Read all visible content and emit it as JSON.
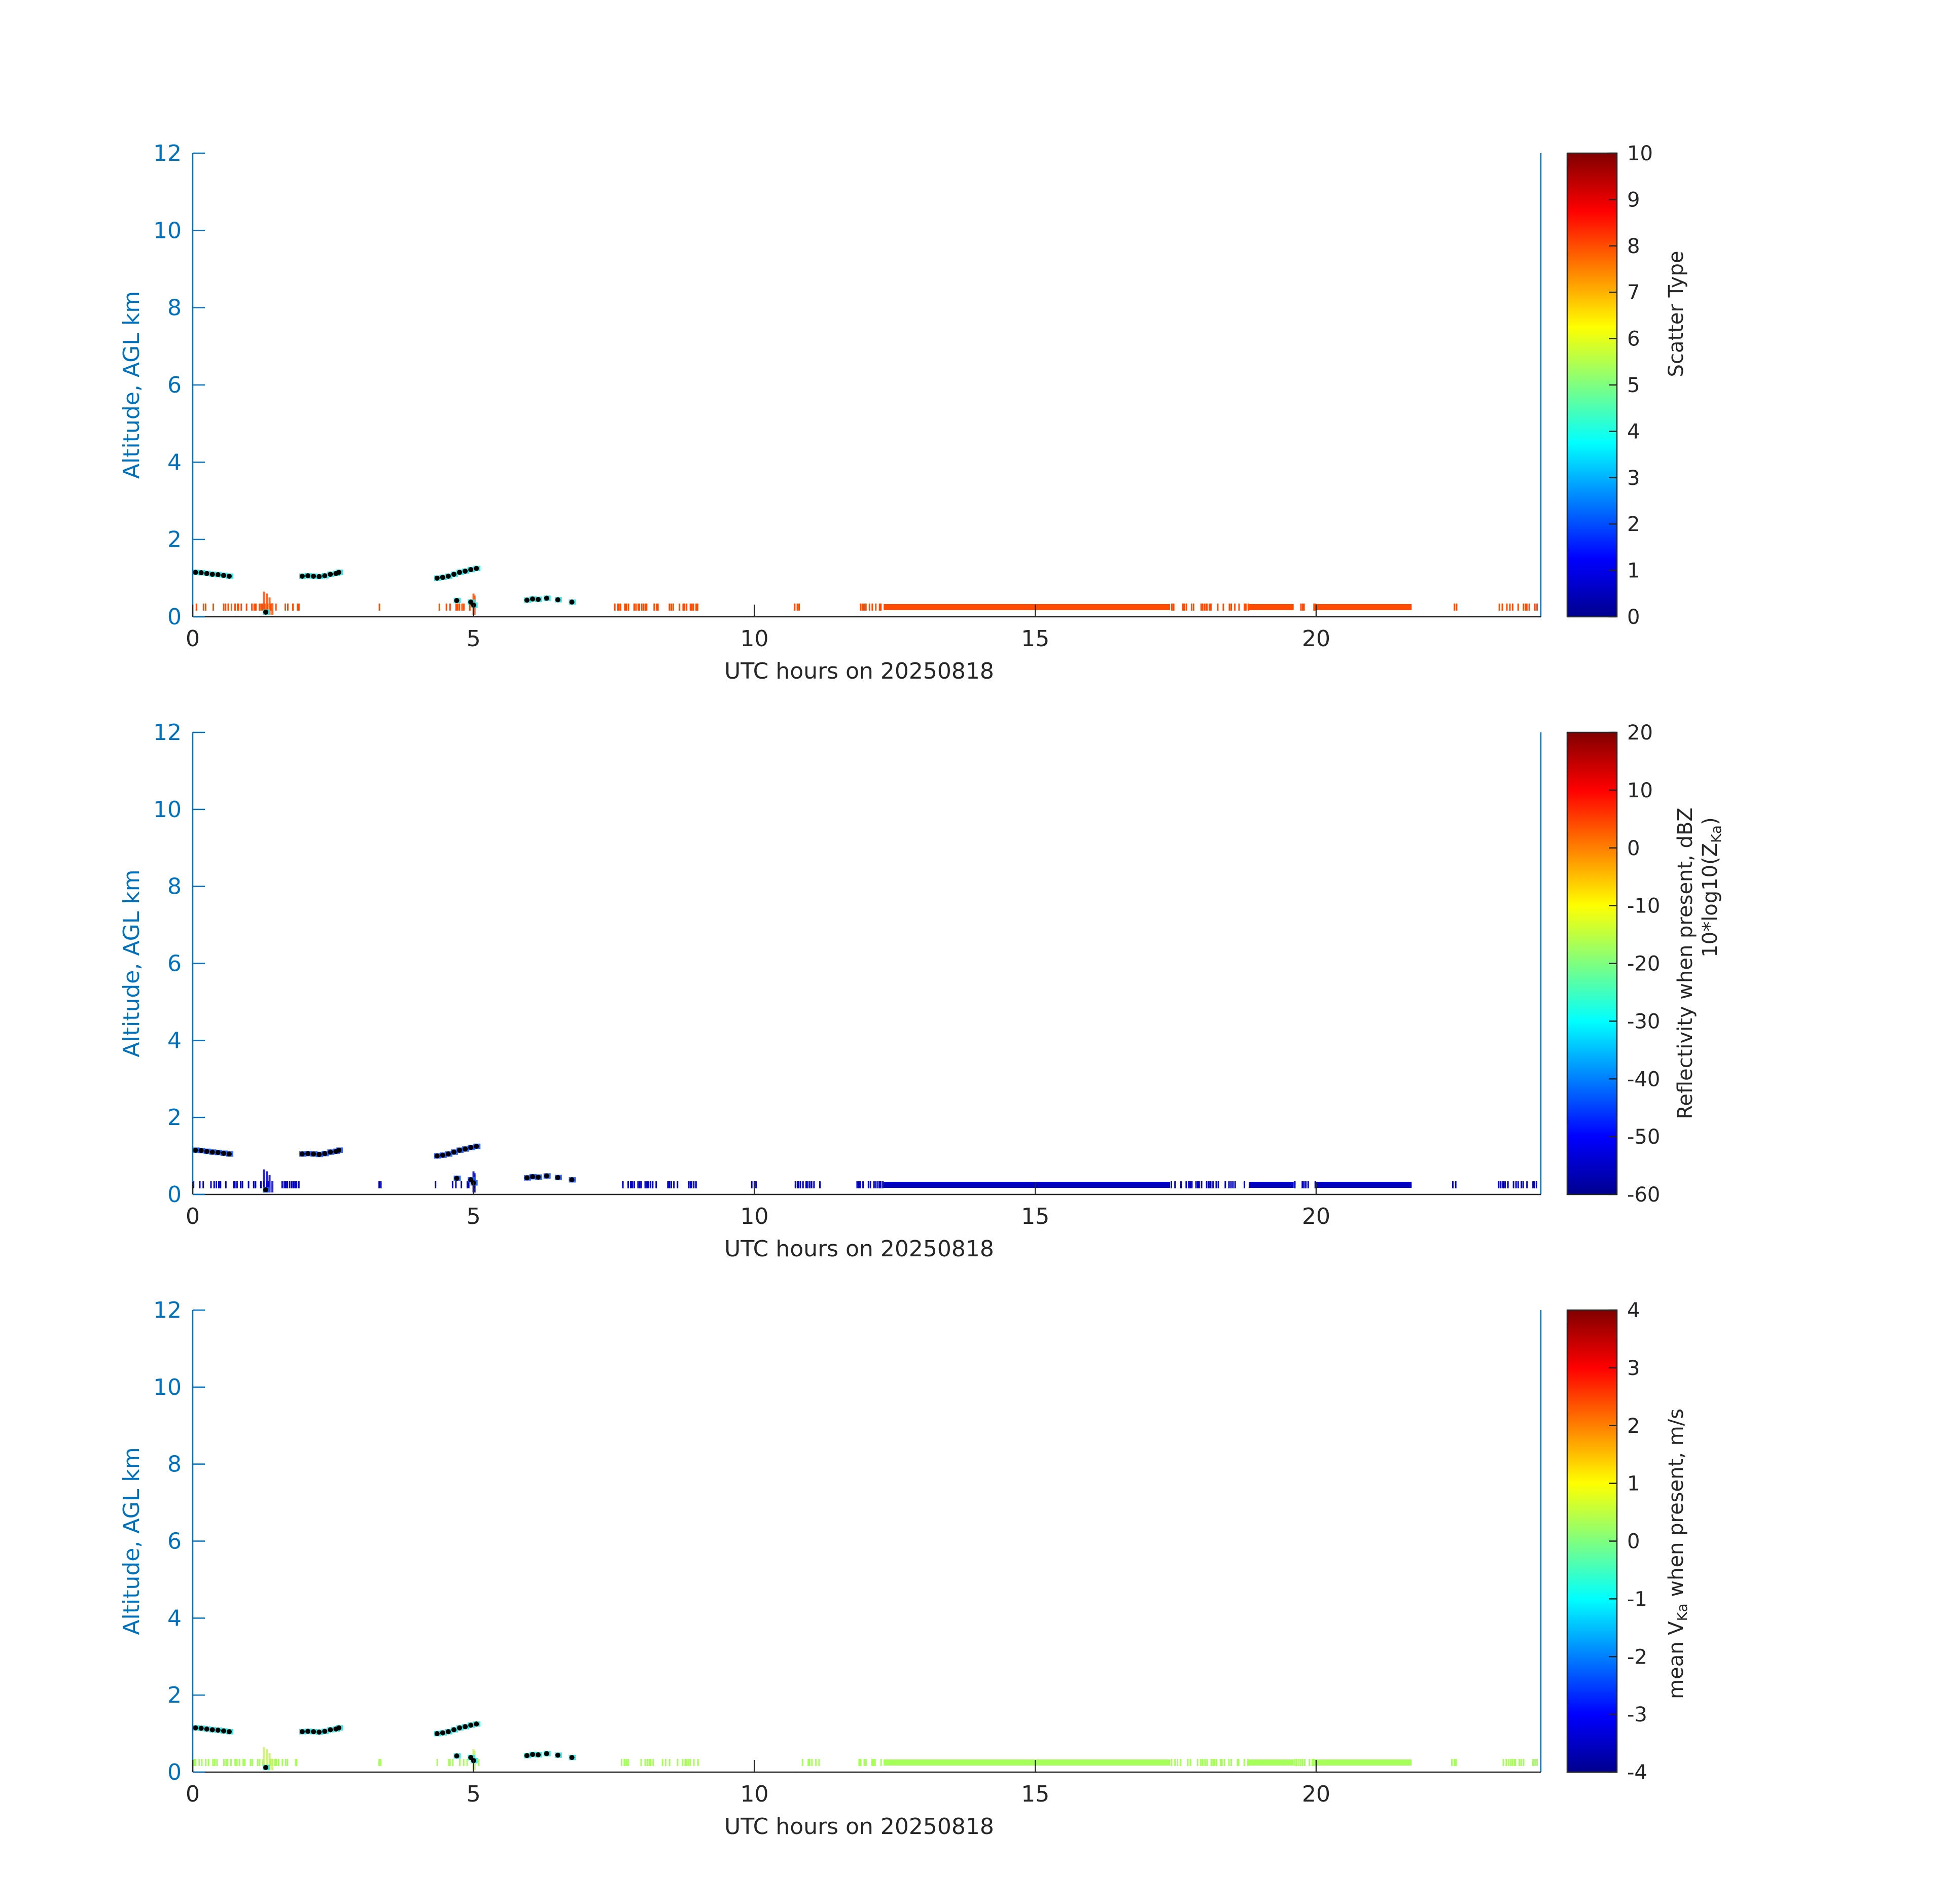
{
  "colors": {
    "axis_blue": "#0072BD",
    "axis_dark": "#262626",
    "scatter_fill": "#FF4A00",
    "refl_fill": "#0A1AD8",
    "vel_fill": "#7DF07A",
    "cloud_cyan": "#2FE6E0",
    "cloud_dot": "#000000"
  },
  "chart_data": [
    {
      "type": "heatmap",
      "title": "",
      "xlabel": "UTC hours on 20250818",
      "ylabel": "Altitude, AGL km",
      "xlim": [
        0,
        24
      ],
      "ylim": [
        0,
        12
      ],
      "xticks": [
        0,
        5,
        10,
        15,
        20
      ],
      "yticks": [
        0,
        2,
        4,
        6,
        8,
        10,
        12
      ],
      "grid": false,
      "colorbar": {
        "label": "Scatter Type",
        "label2": "",
        "range": [
          0,
          10
        ],
        "ticks": [
          0,
          1,
          2,
          3,
          4,
          5,
          6,
          7,
          8,
          9,
          10
        ],
        "colormap": "jet"
      },
      "near_surface_band": {
        "altitude_km": 0.25,
        "value": 8,
        "continuous_segments_utc_h": [
          [
            12.3,
            17.4
          ],
          [
            18.8,
            19.6
          ],
          [
            20.0,
            21.7
          ]
        ],
        "sparse_segments_utc_h": [
          [
            0.0,
            1.9
          ],
          [
            3.3,
            3.35
          ],
          [
            4.3,
            5.1
          ],
          [
            7.5,
            9.0
          ],
          [
            10.7,
            10.8
          ],
          [
            11.8,
            12.3
          ],
          [
            17.4,
            18.8
          ],
          [
            19.6,
            20.0
          ],
          [
            22.4,
            22.5
          ],
          [
            23.2,
            24.0
          ]
        ]
      },
      "cloud_base_points": [
        {
          "t": 0.05,
          "z": 1.15
        },
        {
          "t": 0.15,
          "z": 1.14
        },
        {
          "t": 0.25,
          "z": 1.12
        },
        {
          "t": 0.35,
          "z": 1.1
        },
        {
          "t": 0.45,
          "z": 1.09
        },
        {
          "t": 0.55,
          "z": 1.07
        },
        {
          "t": 0.65,
          "z": 1.05
        },
        {
          "t": 1.3,
          "z": 0.12
        },
        {
          "t": 1.95,
          "z": 1.05
        },
        {
          "t": 2.05,
          "z": 1.06
        },
        {
          "t": 2.15,
          "z": 1.05
        },
        {
          "t": 2.25,
          "z": 1.04
        },
        {
          "t": 2.35,
          "z": 1.06
        },
        {
          "t": 2.45,
          "z": 1.1
        },
        {
          "t": 2.55,
          "z": 1.12
        },
        {
          "t": 2.6,
          "z": 1.15
        },
        {
          "t": 4.35,
          "z": 1.0
        },
        {
          "t": 4.45,
          "z": 1.02
        },
        {
          "t": 4.55,
          "z": 1.05
        },
        {
          "t": 4.65,
          "z": 1.1
        },
        {
          "t": 4.75,
          "z": 1.15
        },
        {
          "t": 4.85,
          "z": 1.18
        },
        {
          "t": 4.95,
          "z": 1.22
        },
        {
          "t": 5.05,
          "z": 1.25
        },
        {
          "t": 4.7,
          "z": 0.42
        },
        {
          "t": 4.95,
          "z": 0.38
        },
        {
          "t": 5.0,
          "z": 0.3
        },
        {
          "t": 5.95,
          "z": 0.43
        },
        {
          "t": 6.05,
          "z": 0.46
        },
        {
          "t": 6.15,
          "z": 0.45
        },
        {
          "t": 6.3,
          "z": 0.48
        },
        {
          "t": 6.5,
          "z": 0.44
        },
        {
          "t": 6.75,
          "z": 0.38
        }
      ]
    },
    {
      "type": "heatmap",
      "title": "",
      "xlabel": "UTC hours on 20250818",
      "ylabel": "Altitude, AGL km",
      "xlim": [
        0,
        24
      ],
      "ylim": [
        0,
        12
      ],
      "xticks": [
        0,
        5,
        10,
        15,
        20
      ],
      "yticks": [
        0,
        2,
        4,
        6,
        8,
        10,
        12
      ],
      "grid": false,
      "colorbar": {
        "label": "Reflectivity when present, dBZ",
        "label2": "10*log10(Z",
        "label2_sub": "Ka",
        "label2_end": ")",
        "range": [
          -60,
          20
        ],
        "ticks": [
          -60,
          -50,
          -40,
          -30,
          -20,
          -10,
          0,
          10,
          20
        ],
        "colormap": "jet"
      },
      "near_surface_band": {
        "altitude_km": 0.25,
        "value": -55,
        "continuous_segments_utc_h": [
          [
            12.3,
            17.4
          ],
          [
            18.8,
            19.6
          ],
          [
            20.0,
            21.7
          ]
        ],
        "sparse_segments_utc_h": [
          [
            0.0,
            1.9
          ],
          [
            3.3,
            3.35
          ],
          [
            4.3,
            5.1
          ],
          [
            7.5,
            9.0
          ],
          [
            9.9,
            10.1
          ],
          [
            10.7,
            11.2
          ],
          [
            11.8,
            12.3
          ],
          [
            17.4,
            18.8
          ],
          [
            19.6,
            20.0
          ],
          [
            22.4,
            22.5
          ],
          [
            23.2,
            24.0
          ]
        ]
      }
    },
    {
      "type": "heatmap",
      "title": "",
      "xlabel": "UTC hours on 20250818",
      "ylabel": "Altitude, AGL km",
      "xlim": [
        0,
        24
      ],
      "ylim": [
        0,
        12
      ],
      "xticks": [
        0,
        5,
        10,
        15,
        20
      ],
      "yticks": [
        0,
        2,
        4,
        6,
        8,
        10,
        12
      ],
      "grid": false,
      "colorbar": {
        "label": "mean V",
        "label_sub": "Ka",
        "label_end": " when present, m/s",
        "range": [
          -4,
          4
        ],
        "ticks": [
          -4,
          -3,
          -2,
          -1,
          0,
          1,
          2,
          3,
          4
        ],
        "colormap": "jet"
      },
      "near_surface_band": {
        "altitude_km": 0.25,
        "value": 0.3,
        "continuous_segments_utc_h": [
          [
            12.3,
            17.4
          ],
          [
            18.8,
            19.6
          ],
          [
            20.0,
            21.7
          ]
        ],
        "sparse_segments_utc_h": [
          [
            0.0,
            1.9
          ],
          [
            3.3,
            3.35
          ],
          [
            4.3,
            5.1
          ],
          [
            7.5,
            9.0
          ],
          [
            10.7,
            11.2
          ],
          [
            11.8,
            12.3
          ],
          [
            17.4,
            18.8
          ],
          [
            19.6,
            20.0
          ],
          [
            22.4,
            22.5
          ],
          [
            23.2,
            24.0
          ]
        ]
      }
    }
  ]
}
